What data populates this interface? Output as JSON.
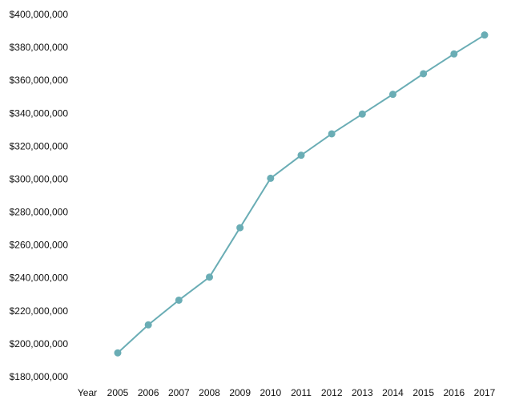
{
  "chart_data": {
    "type": "line",
    "x_axis_title": "Year",
    "categories": [
      "2005",
      "2006",
      "2007",
      "2008",
      "2009",
      "2010",
      "2011",
      "2012",
      "2013",
      "2014",
      "2015",
      "2016",
      "2017"
    ],
    "series": [
      {
        "values": [
          194500000,
          211500000,
          226500000,
          240500000,
          270500000,
          300500000,
          314500000,
          327500000,
          339500000,
          351500000,
          364000000,
          376000000,
          387500000
        ]
      }
    ],
    "ylim": [
      180000000,
      400000000
    ],
    "y_ticks": [
      180000000,
      200000000,
      220000000,
      240000000,
      260000000,
      280000000,
      300000000,
      320000000,
      340000000,
      360000000,
      380000000,
      400000000
    ],
    "y_tick_labels": [
      "$180,000,000",
      "$200,000,000",
      "$220,000,000",
      "$240,000,000",
      "$260,000,000",
      "$280,000,000",
      "$300,000,000",
      "$320,000,000",
      "$340,000,000",
      "$360,000,000",
      "$380,000,000",
      "$400,000,000"
    ],
    "line_color": "#6aadb5",
    "grid": false,
    "legend": "none"
  }
}
